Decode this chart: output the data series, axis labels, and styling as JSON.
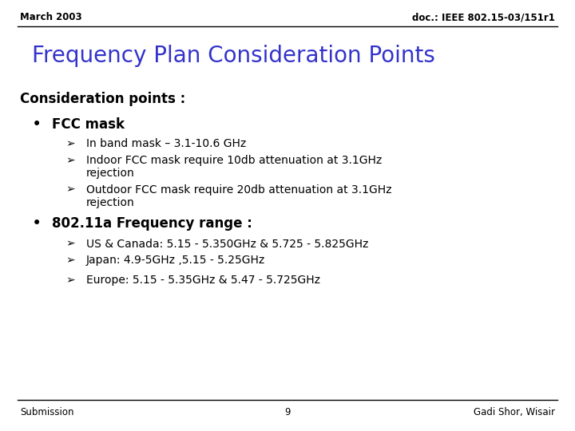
{
  "header_left": "March 2003",
  "header_right": "doc.: IEEE 802.15-03/151r1",
  "title": "Frequency Plan Consideration Points",
  "title_color": "#3333CC",
  "section_heading": "Consideration points :",
  "bullet1": "FCC mask",
  "sub1_1": "In band mask – 3.1-10.6 GHz",
  "sub1_2a": "Indoor FCC mask require 10db attenuation at 3.1GHz",
  "sub1_2b": "rejection",
  "sub1_3a": "Outdoor FCC mask require 20db attenuation at 3.1GHz",
  "sub1_3b": "rejection",
  "bullet2": "802.11a Frequency range :",
  "sub2_1": "US & Canada: 5.15 - 5.350GHz & 5.725 - 5.825GHz",
  "sub2_2": "Japan: 4.9-5GHz ,5.15 - 5.25GHz",
  "sub2_3": "Europe: 5.15 - 5.35GHz & 5.47 - 5.725GHz",
  "footer_left": "Submission",
  "footer_center": "9",
  "footer_right": "Gadi Shor, Wisair",
  "bg_color": "#FFFFFF",
  "text_color": "#000000",
  "header_fontsize": 8.5,
  "title_fontsize": 20,
  "section_fontsize": 12,
  "bullet_fontsize": 12,
  "sub_fontsize": 10,
  "footer_fontsize": 8.5,
  "arrow_char": "Ø",
  "bullet_char": "•"
}
